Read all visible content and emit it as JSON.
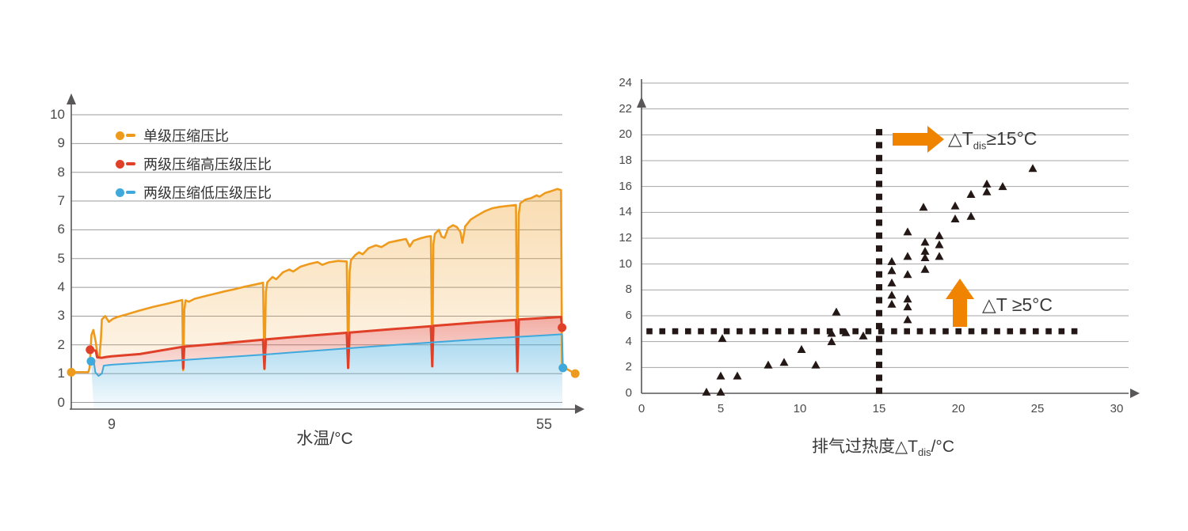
{
  "colors": {
    "orange": "#EE9A1D",
    "red": "#E03F28",
    "blue": "#3FA9DC",
    "arrow_orange": "#F08300",
    "marker_dark": "#231815",
    "grid_left": "#9B9B9B",
    "grid_right": "#A5A5A5",
    "axis": "#595757",
    "tick_text": "#4a4a4a",
    "title_text": "#3a3a3a"
  },
  "chart_data": [
    {
      "type": "area",
      "title": "",
      "xlabel": "水温/°C",
      "ylabel": "",
      "xlim": [
        4.7,
        59
      ],
      "ylim": [
        0,
        10
      ],
      "grid": true,
      "legend_position": "top-left",
      "x_ticks": [
        {
          "value": 9,
          "label": "9"
        },
        {
          "value": 55,
          "label": "55"
        }
      ],
      "y_ticks": [
        {
          "value": 0,
          "label": "0"
        },
        {
          "value": 1,
          "label": "1"
        },
        {
          "value": 2,
          "label": "2"
        },
        {
          "value": 3,
          "label": "3"
        },
        {
          "value": 4,
          "label": "4"
        },
        {
          "value": 5,
          "label": "5"
        },
        {
          "value": 6,
          "label": "6"
        },
        {
          "value": 7,
          "label": "7"
        },
        {
          "value": 8,
          "label": "8"
        },
        {
          "value": 9,
          "label": "9"
        },
        {
          "value": 10,
          "label": "10"
        }
      ],
      "series": [
        {
          "name": "单级压缩压比",
          "color": "#EE9A1D",
          "start_dot": [
            4.7,
            1.05
          ],
          "end_dot": [
            58.3,
            1.0
          ],
          "points": [
            [
              4.7,
              1.05
            ],
            [
              6.5,
              1.05
            ],
            [
              6.65,
              1.2
            ],
            [
              6.85,
              2.35
            ],
            [
              7.05,
              2.52
            ],
            [
              7.3,
              2.1
            ],
            [
              7.5,
              1.62
            ],
            [
              7.7,
              1.6
            ],
            [
              7.85,
              2.2
            ],
            [
              7.95,
              2.88
            ],
            [
              8.3,
              3.0
            ],
            [
              8.7,
              2.8
            ],
            [
              9.1,
              2.9
            ],
            [
              9.6,
              2.97
            ],
            [
              10.5,
              3.05
            ],
            [
              12,
              3.2
            ],
            [
              13.5,
              3.33
            ],
            [
              15,
              3.44
            ],
            [
              16,
              3.52
            ],
            [
              16.5,
              3.56
            ],
            [
              16.6,
              1.12
            ],
            [
              16.72,
              3.2
            ],
            [
              16.85,
              3.55
            ],
            [
              17.2,
              3.5
            ],
            [
              17.8,
              3.6
            ],
            [
              19,
              3.7
            ],
            [
              20,
              3.78
            ],
            [
              21,
              3.86
            ],
            [
              22,
              3.93
            ],
            [
              23,
              4.01
            ],
            [
              24,
              4.08
            ],
            [
              25.1,
              4.16
            ],
            [
              25.25,
              1.15
            ],
            [
              25.4,
              3.85
            ],
            [
              25.55,
              4.18
            ],
            [
              26.1,
              4.36
            ],
            [
              26.5,
              4.28
            ],
            [
              27.2,
              4.52
            ],
            [
              27.9,
              4.62
            ],
            [
              28.3,
              4.55
            ],
            [
              29.1,
              4.72
            ],
            [
              30.1,
              4.82
            ],
            [
              30.9,
              4.88
            ],
            [
              31.4,
              4.78
            ],
            [
              32.1,
              4.87
            ],
            [
              33.1,
              4.92
            ],
            [
              34.0,
              4.9
            ],
            [
              34.15,
              1.2
            ],
            [
              34.3,
              4.55
            ],
            [
              34.45,
              4.95
            ],
            [
              34.9,
              5.12
            ],
            [
              35.3,
              5.22
            ],
            [
              35.7,
              5.15
            ],
            [
              36.3,
              5.36
            ],
            [
              37.1,
              5.46
            ],
            [
              37.7,
              5.4
            ],
            [
              38.5,
              5.56
            ],
            [
              39.5,
              5.63
            ],
            [
              40.3,
              5.68
            ],
            [
              40.7,
              5.42
            ],
            [
              41.1,
              5.62
            ],
            [
              41.9,
              5.71
            ],
            [
              42.5,
              5.76
            ],
            [
              42.95,
              5.78
            ],
            [
              43.1,
              1.25
            ],
            [
              43.22,
              5.5
            ],
            [
              43.38,
              5.86
            ],
            [
              43.8,
              6.0
            ],
            [
              44.1,
              5.76
            ],
            [
              44.4,
              5.72
            ],
            [
              44.8,
              6.06
            ],
            [
              45.3,
              6.16
            ],
            [
              45.7,
              6.1
            ],
            [
              46.1,
              5.92
            ],
            [
              46.3,
              5.55
            ],
            [
              46.6,
              6.12
            ],
            [
              47.2,
              6.36
            ],
            [
              47.9,
              6.5
            ],
            [
              48.7,
              6.65
            ],
            [
              49.5,
              6.75
            ],
            [
              50.3,
              6.8
            ],
            [
              51.1,
              6.83
            ],
            [
              52.0,
              6.86
            ],
            [
              52.15,
              1.3
            ],
            [
              52.3,
              6.55
            ],
            [
              52.45,
              6.92
            ],
            [
              53.0,
              7.05
            ],
            [
              53.6,
              7.1
            ],
            [
              54.2,
              7.2
            ],
            [
              54.5,
              7.15
            ],
            [
              55.1,
              7.28
            ],
            [
              55.7,
              7.34
            ],
            [
              56.4,
              7.42
            ],
            [
              56.8,
              7.38
            ],
            [
              56.9,
              1.25
            ],
            [
              57.3,
              1.18
            ],
            [
              58.3,
              1.0
            ]
          ]
        },
        {
          "name": "两级压缩高压级压比",
          "color": "#E03F28",
          "start_dot": [
            6.7,
            1.83
          ],
          "end_dot": [
            56.9,
            2.6
          ],
          "points": [
            [
              6.7,
              1.83
            ],
            [
              7.3,
              1.8
            ],
            [
              7.45,
              1.57
            ],
            [
              7.9,
              1.55
            ],
            [
              8.4,
              1.58
            ],
            [
              9,
              1.6
            ],
            [
              12,
              1.68
            ],
            [
              16.5,
              1.93
            ],
            [
              16.6,
              1.18
            ],
            [
              16.72,
              1.94
            ],
            [
              20,
              2.03
            ],
            [
              25.1,
              2.18
            ],
            [
              25.25,
              1.18
            ],
            [
              25.4,
              2.19
            ],
            [
              30,
              2.32
            ],
            [
              34.0,
              2.42
            ],
            [
              34.15,
              1.2
            ],
            [
              34.3,
              2.43
            ],
            [
              39,
              2.55
            ],
            [
              42.95,
              2.65
            ],
            [
              43.1,
              1.26
            ],
            [
              43.22,
              2.66
            ],
            [
              48,
              2.78
            ],
            [
              52.0,
              2.87
            ],
            [
              52.15,
              1.08
            ],
            [
              52.3,
              2.88
            ],
            [
              56.8,
              2.97
            ],
            [
              56.9,
              2.6
            ]
          ]
        },
        {
          "name": "两级压缩低压级压比",
          "color": "#3FA9DC",
          "start_dot": [
            6.8,
            1.43
          ],
          "end_dot": [
            57.0,
            1.2
          ],
          "points": [
            [
              6.8,
              1.43
            ],
            [
              7.1,
              1.43
            ],
            [
              7.25,
              1.05
            ],
            [
              7.6,
              0.92
            ],
            [
              7.95,
              1.0
            ],
            [
              8.15,
              1.28
            ],
            [
              9,
              1.31
            ],
            [
              15,
              1.44
            ],
            [
              20,
              1.55
            ],
            [
              25,
              1.66
            ],
            [
              30,
              1.78
            ],
            [
              35,
              1.9
            ],
            [
              40,
              2.02
            ],
            [
              45,
              2.13
            ],
            [
              50,
              2.24
            ],
            [
              55,
              2.33
            ],
            [
              56.9,
              2.37
            ],
            [
              57.0,
              1.2
            ]
          ]
        }
      ]
    },
    {
      "type": "scatter",
      "title": "",
      "xlabel_parts": {
        "prefix": "排气过热度△T",
        "sub": "dis",
        "suffix": "/°C"
      },
      "xlim": [
        0,
        31.5
      ],
      "ylim": [
        0,
        24
      ],
      "grid": true,
      "marker": "▲",
      "marker_color": "#231815",
      "x_ticks": [
        {
          "value": 0,
          "label": "0"
        },
        {
          "value": 5,
          "label": "5"
        },
        {
          "value": 10,
          "label": "10"
        },
        {
          "value": 15,
          "label": "15"
        },
        {
          "value": 20,
          "label": "20"
        },
        {
          "value": 25,
          "label": "25"
        },
        {
          "value": 30,
          "label": "30"
        }
      ],
      "y_ticks": [
        {
          "value": 0,
          "label": "0"
        },
        {
          "value": 2,
          "label": "2"
        },
        {
          "value": 4,
          "label": "4"
        },
        {
          "value": 6,
          "label": "6"
        },
        {
          "value": 8,
          "label": "8"
        },
        {
          "value": 10,
          "label": "10"
        },
        {
          "value": 12,
          "label": "12"
        },
        {
          "value": 14,
          "label": "14"
        },
        {
          "value": 16,
          "label": "16"
        },
        {
          "value": 18,
          "label": "18"
        },
        {
          "value": 20,
          "label": "20"
        },
        {
          "value": 22,
          "label": "22"
        },
        {
          "value": 24,
          "label": "24"
        }
      ],
      "points": [
        [
          4.1,
          0.1
        ],
        [
          5.0,
          0.1
        ],
        [
          5.0,
          1.35
        ],
        [
          6.05,
          1.35
        ],
        [
          8.0,
          2.2
        ],
        [
          9.0,
          2.4
        ],
        [
          11.0,
          2.2
        ],
        [
          10.1,
          3.4
        ],
        [
          5.1,
          4.25
        ],
        [
          12.0,
          4.0
        ],
        [
          12.0,
          4.65
        ],
        [
          12.3,
          6.3
        ],
        [
          12.9,
          4.7
        ],
        [
          14.0,
          4.45
        ],
        [
          15.8,
          10.2
        ],
        [
          15.8,
          9.5
        ],
        [
          15.8,
          8.55
        ],
        [
          15.8,
          7.6
        ],
        [
          15.8,
          6.9
        ],
        [
          16.8,
          12.5
        ],
        [
          16.8,
          10.6
        ],
        [
          16.8,
          9.2
        ],
        [
          16.8,
          7.3
        ],
        [
          16.8,
          6.7
        ],
        [
          16.8,
          5.7
        ],
        [
          17.8,
          14.4
        ],
        [
          17.9,
          11.7
        ],
        [
          17.9,
          11.0
        ],
        [
          17.9,
          10.5
        ],
        [
          17.9,
          9.6
        ],
        [
          18.8,
          12.2
        ],
        [
          18.8,
          11.5
        ],
        [
          18.8,
          10.6
        ],
        [
          19.8,
          14.5
        ],
        [
          19.8,
          13.5
        ],
        [
          20.8,
          15.4
        ],
        [
          20.8,
          13.7
        ],
        [
          21.8,
          16.2
        ],
        [
          21.8,
          15.6
        ],
        [
          22.8,
          16.0
        ],
        [
          24.7,
          17.4
        ]
      ],
      "threshold_lines": [
        {
          "orientation": "vertical",
          "x": 15,
          "y_from": 0.2,
          "y_to": 20.2,
          "style": "dotted-squares"
        },
        {
          "orientation": "horizontal",
          "y": 4.8,
          "x_from": 0.5,
          "x_to": 27.6,
          "style": "dotted-squares"
        }
      ],
      "annotations": [
        {
          "prefix": "△T",
          "sub": "dis",
          "suffix": "≥15°C",
          "arrow": "right"
        },
        {
          "prefix": "△T ",
          "sub": "",
          "suffix": "≥5°C",
          "arrow": "up"
        }
      ]
    }
  ]
}
